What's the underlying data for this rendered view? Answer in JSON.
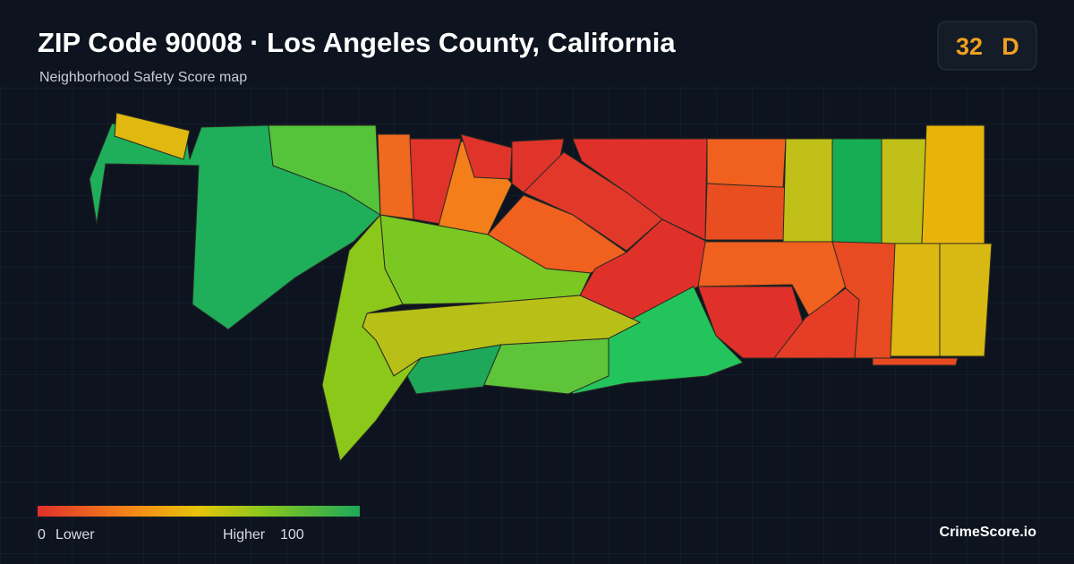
{
  "header": {
    "title": "ZIP Code 90008 · Los Angeles County, California",
    "subtitle": "Neighborhood Safety Score map"
  },
  "score": {
    "value": 32,
    "grade": "D"
  },
  "legend": {
    "min": 0,
    "min_label": "Lower",
    "max_label": "Higher",
    "max": 100
  },
  "brand": "CrimeScore.io"
}
